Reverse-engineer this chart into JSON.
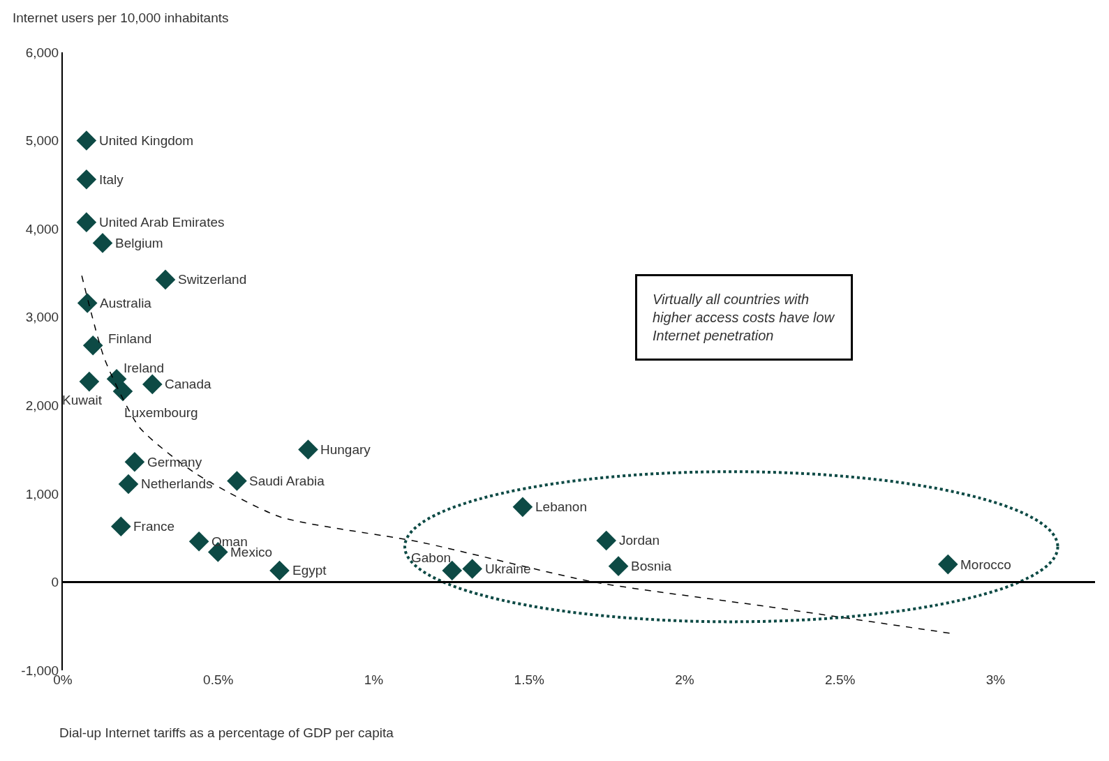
{
  "chart_data": {
    "type": "scatter",
    "ylabel": "Internet users per 10,000 inhabitants",
    "xlabel": "Dial-up Internet tariffs as a percentage of GDP per capita",
    "xlim": [
      0,
      3.32
    ],
    "xticks": [
      {
        "value": 0,
        "label": "0%"
      },
      {
        "value": 0.5,
        "label": "0.5%"
      },
      {
        "value": 1,
        "label": "1%"
      },
      {
        "value": 1.5,
        "label": "1.5%"
      },
      {
        "value": 2,
        "label": "2%"
      },
      {
        "value": 2.5,
        "label": "2.5%"
      },
      {
        "value": 3,
        "label": "3%"
      }
    ],
    "ylim": [
      -1000,
      6000
    ],
    "yticks": [
      {
        "value": -1000,
        "label": "-1,000"
      },
      0,
      {
        "value": 1000,
        "label": "1,000"
      },
      {
        "value": 2000,
        "label": "2,000"
      },
      {
        "value": 3000,
        "label": "3,000"
      },
      {
        "value": 4000,
        "label": "4,000"
      },
      {
        "value": 5000,
        "label": "5,000"
      },
      {
        "value": 6000,
        "label": "6,000"
      }
    ],
    "legend": false,
    "ref_lines": [
      {
        "axis": "y",
        "value": 0,
        "color": "#000000"
      }
    ],
    "series": [
      {
        "color": "#0d4a45",
        "marker": "diamond",
        "x": [
          0.076,
          0.076,
          0.076,
          0.128,
          0.33,
          0.079,
          0.097,
          0.173,
          0.085,
          0.193,
          0.288,
          0.789,
          0.231,
          0.211,
          0.56,
          0.187,
          0.438,
          0.499,
          0.697,
          1.479,
          1.252,
          1.317,
          1.748,
          1.787,
          2.847
        ],
        "values": [
          5000,
          4560,
          4075,
          3840,
          3425,
          3160,
          2680,
          2300,
          2270,
          2160,
          2240,
          1500,
          1360,
          1110,
          1145,
          630,
          460,
          340,
          130,
          850,
          130,
          150,
          470,
          180,
          200
        ]
      },
      {
        "type": "line",
        "color": "#000000",
        "marker": "none",
        "line_style": "dashed",
        "x": [
          0.061,
          0.135,
          0.247,
          0.427,
          0.697,
          1.146,
          1.708,
          2.27,
          2.854
        ],
        "values": [
          3470,
          2520,
          1750,
          1230,
          740,
          455,
          0,
          -280,
          -580
        ]
      }
    ],
    "annotations": [
      {
        "text": "United Kingdom",
        "x": 0.076,
        "y": 5000
      },
      {
        "text": "Italy",
        "x": 0.076,
        "y": 4560
      },
      {
        "text": "United Arab Emirates",
        "x": 0.076,
        "y": 4075
      },
      {
        "text": "Belgium",
        "x": 0.128,
        "y": 3840
      },
      {
        "text": "Switzerland",
        "x": 0.33,
        "y": 3425
      },
      {
        "text": "Australia",
        "x": 0.079,
        "y": 3160
      },
      {
        "text": "Finland",
        "x": 0.097,
        "y": 2680
      },
      {
        "text": "Ireland",
        "x": 0.173,
        "y": 2300
      },
      {
        "text": "Kuwait",
        "x": 0.085,
        "y": 2270
      },
      {
        "text": "Luxembourg",
        "x": 0.193,
        "y": 2160
      },
      {
        "text": "Canada",
        "x": 0.288,
        "y": 2240
      },
      {
        "text": "Hungary",
        "x": 0.789,
        "y": 1500
      },
      {
        "text": "Germany",
        "x": 0.231,
        "y": 1360
      },
      {
        "text": "Netherlands",
        "x": 0.211,
        "y": 1110
      },
      {
        "text": "Saudi Arabia",
        "x": 0.56,
        "y": 1145
      },
      {
        "text": "France",
        "x": 0.187,
        "y": 630
      },
      {
        "text": "Oman",
        "x": 0.438,
        "y": 460
      },
      {
        "text": "Mexico",
        "x": 0.499,
        "y": 340
      },
      {
        "text": "Egypt",
        "x": 0.697,
        "y": 130
      },
      {
        "text": "Lebanon",
        "x": 1.479,
        "y": 850
      },
      {
        "text": "Gabon",
        "x": 1.252,
        "y": 130
      },
      {
        "text": "Ukraine",
        "x": 1.317,
        "y": 150
      },
      {
        "text": "Jordan",
        "x": 1.748,
        "y": 470
      },
      {
        "text": "Bosnia",
        "x": 1.787,
        "y": 180
      },
      {
        "text": "Morocco",
        "x": 2.847,
        "y": 200
      },
      "Virtually all countries with higher access costs have low Internet penetration"
    ]
  }
}
